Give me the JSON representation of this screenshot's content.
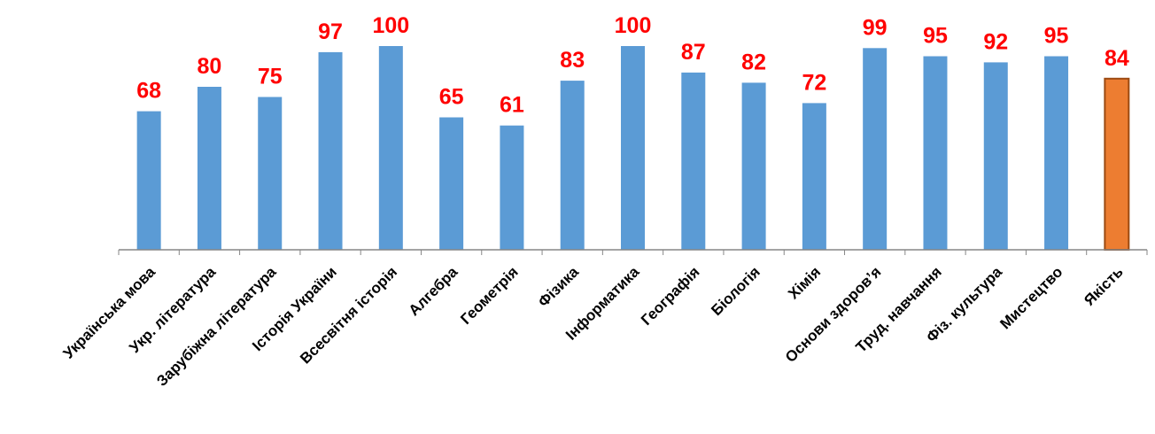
{
  "chart_data": {
    "type": "bar",
    "title": "",
    "xlabel": "",
    "ylabel": "",
    "categories": [
      "Українська  мова",
      "Укр. література",
      "Зарубіжна література",
      "Історія України",
      "Всесвітня історія",
      "Алгебра",
      "Геометрія",
      "Фізика",
      "Інформатика",
      "Географія",
      "Біологія",
      "Хімія",
      "Основи здоров’я",
      "Труд. навчання",
      "Фіз. культура",
      "Мистецтво",
      "Якість"
    ],
    "values": [
      68,
      80,
      75,
      97,
      100,
      65,
      61,
      83,
      100,
      87,
      82,
      72,
      99,
      95,
      92,
      95,
      84
    ],
    "bar_colors": [
      "#5B9BD5",
      "#5B9BD5",
      "#5B9BD5",
      "#5B9BD5",
      "#5B9BD5",
      "#5B9BD5",
      "#5B9BD5",
      "#5B9BD5",
      "#5B9BD5",
      "#5B9BD5",
      "#5B9BD5",
      "#5B9BD5",
      "#5B9BD5",
      "#5B9BD5",
      "#5B9BD5",
      "#5B9BD5",
      "#ED7D31"
    ],
    "highlight_border_color": "#9C4A12",
    "label_color": "#FF0000",
    "axis_color": "#868686",
    "ylim": [
      0,
      100
    ],
    "grid": false,
    "legend": "none",
    "data_labels": true
  }
}
